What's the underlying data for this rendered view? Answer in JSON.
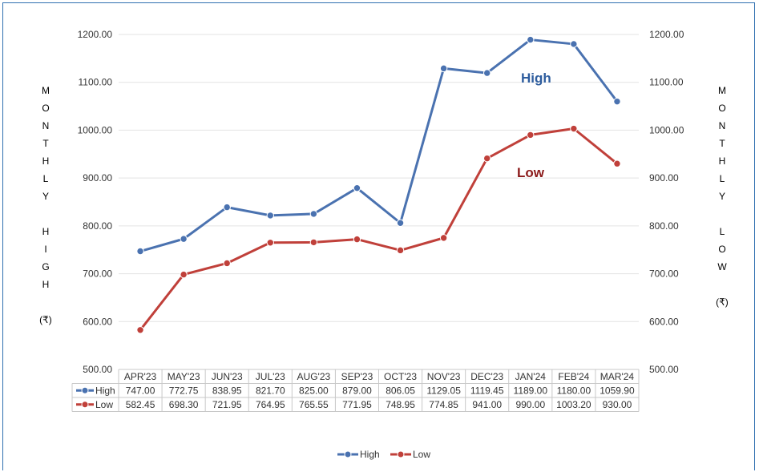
{
  "chart_data": {
    "type": "line",
    "categories": [
      "APR'23",
      "MAY'23",
      "JUN'23",
      "JUL'23",
      "AUG'23",
      "SEP'23",
      "OCT'23",
      "NOV'23",
      "DEC'23",
      "JAN'24",
      "FEB'24",
      "MAR'24"
    ],
    "series": [
      {
        "name": "High",
        "color": "#4a72b0",
        "values": [
          747.0,
          772.75,
          838.95,
          821.7,
          825.0,
          879.0,
          806.05,
          1129.05,
          1119.45,
          1189.0,
          1180.0,
          1059.9
        ],
        "labels": [
          "747.00",
          "772.75",
          "838.95",
          "821.70",
          "825.00",
          "879.00",
          "806.05",
          "1129.05",
          "1119.45",
          "1189.00",
          "1180.00",
          "1059.90"
        ]
      },
      {
        "name": "Low",
        "color": "#c0403a",
        "values": [
          582.45,
          698.3,
          721.95,
          764.95,
          765.55,
          771.95,
          748.95,
          774.85,
          941.0,
          990.0,
          1003.2,
          930.0
        ],
        "labels": [
          "582.45",
          "698.30",
          "721.95",
          "764.95",
          "765.55",
          "771.95",
          "748.95",
          "774.85",
          "941.00",
          "990.00",
          "1003.20",
          "930.00"
        ]
      }
    ],
    "ylim": [
      500,
      1200
    ],
    "yticks": [
      "1200.00",
      "1100.00",
      "1000.00",
      "900.00",
      "800.00",
      "700.00",
      "600.00",
      "500.00"
    ],
    "left_axis_label": [
      "M",
      "O",
      "N",
      "T",
      "H",
      "L",
      "Y",
      "",
      "H",
      "I",
      "G",
      "H",
      "",
      "(₹)"
    ],
    "right_axis_label": [
      "M",
      "O",
      "N",
      "T",
      "H",
      "L",
      "Y",
      "",
      "L",
      "O",
      "W",
      "",
      "(₹)"
    ],
    "annotations": [
      {
        "text": "High",
        "color": "#2e5d9e"
      },
      {
        "text": "Low",
        "color": "#8b1a1a"
      }
    ],
    "legend": {
      "position": "bottom",
      "entries": [
        "High",
        "Low"
      ]
    },
    "grid": true
  }
}
